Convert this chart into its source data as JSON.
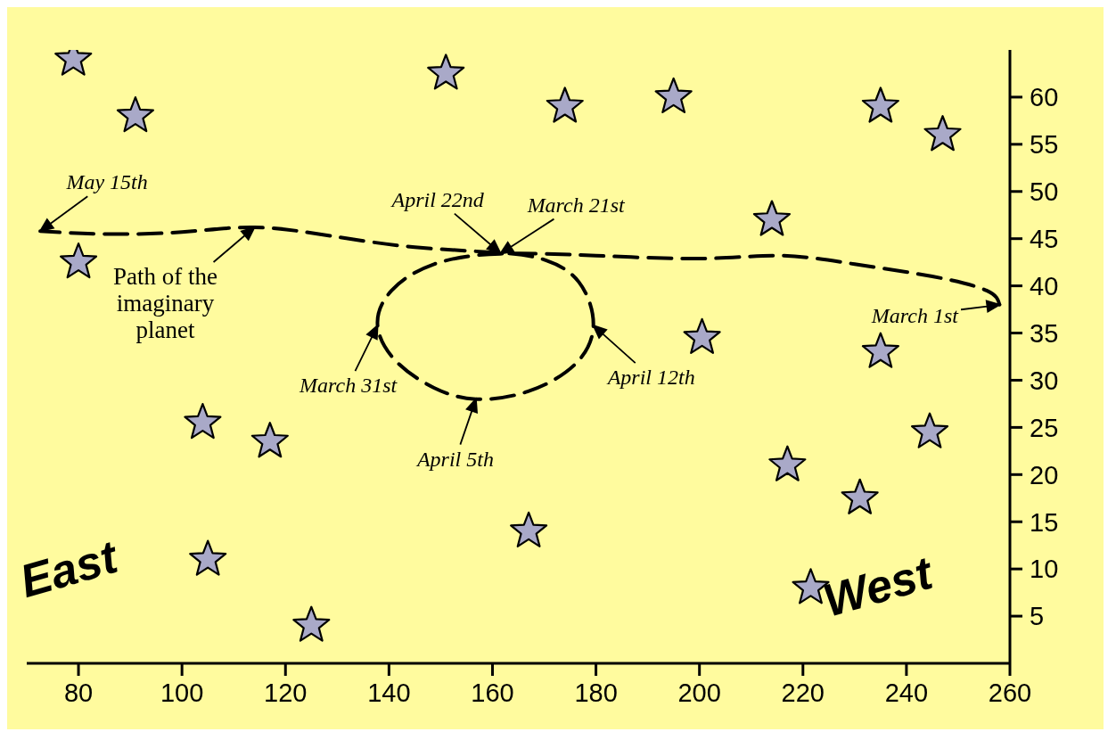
{
  "chart_data": {
    "type": "scatter",
    "xlim": [
      70,
      260
    ],
    "ylim": [
      0,
      65
    ],
    "xticks": [
      80,
      100,
      120,
      140,
      160,
      180,
      200,
      220,
      240,
      260
    ],
    "yticks": [
      5,
      10,
      15,
      20,
      25,
      30,
      35,
      40,
      45,
      50,
      55,
      60
    ],
    "marker": "star",
    "series": [
      {
        "color": "#a9a9c8",
        "x": [
          79,
          91,
          80,
          104,
          117,
          105,
          125,
          151,
          174,
          195,
          167,
          214,
          200.5,
          235,
          247,
          235,
          244.5,
          217,
          231,
          221.5
        ],
        "values": [
          64,
          58,
          42.5,
          25.5,
          23.5,
          11,
          4,
          62.5,
          59,
          60,
          14,
          47,
          34.5,
          59,
          56,
          33,
          24.5,
          21,
          17.5,
          8
        ]
      },
      {
        "type": "line",
        "color": "#000000",
        "line_style": "dashed",
        "marker": "none",
        "x": [
          258,
          255.5,
          245,
          230,
          216,
          201,
          180,
          161.5,
          148.7,
          140.5,
          137.8,
          141.4,
          148.7,
          156.8,
          166.8,
          175.8,
          179.5,
          176.7,
          170.4,
          161.5,
          145,
          128.7,
          114,
          100,
          85,
          72.6
        ],
        "values": [
          38,
          39.5,
          41,
          42.3,
          43.2,
          42.9,
          43.2,
          43.4,
          42.3,
          39.5,
          35.8,
          32,
          29.2,
          28,
          28.8,
          31.6,
          35.8,
          40.4,
          42.7,
          43.5,
          44.1,
          45.3,
          46.2,
          45.7,
          45.5,
          45.8
        ]
      }
    ],
    "annotations": [
      {
        "text": "May 15th",
        "x": 72.6,
        "y": 45.8
      },
      {
        "text": "Path of the imaginary planet",
        "x": 114,
        "y": 46.2
      },
      {
        "text": "April 22nd",
        "x": 161.5,
        "y": 43.5
      },
      {
        "text": "March 21st",
        "x": 161.5,
        "y": 43.4
      },
      {
        "text": "March 31st",
        "x": 137.8,
        "y": 35.8
      },
      {
        "text": "April 5th",
        "x": 156.8,
        "y": 28
      },
      {
        "text": "April 12th",
        "x": 179.5,
        "y": 35.8
      },
      {
        "text": "March 1st",
        "x": 258,
        "y": 38
      },
      "East",
      "West"
    ]
  }
}
